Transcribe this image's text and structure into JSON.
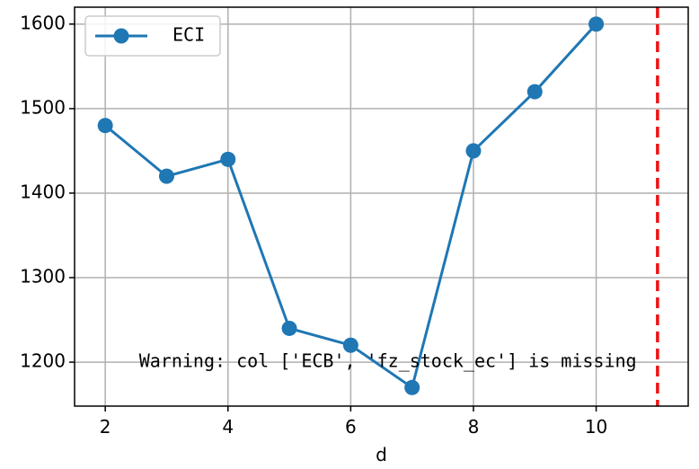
{
  "chart_data": {
    "type": "line",
    "title": "",
    "xlabel": "d",
    "ylabel": "",
    "xlim": [
      1.5,
      11.5
    ],
    "ylim": [
      1148,
      1620
    ],
    "x_ticks": [
      2,
      4,
      6,
      8,
      10
    ],
    "y_ticks": [
      1200,
      1300,
      1400,
      1500,
      1600
    ],
    "grid": true,
    "legend": {
      "placement": "top-left"
    },
    "series": [
      {
        "name": "ECI",
        "color": "#1f77b4",
        "marker": "circle",
        "x": [
          2,
          3,
          4,
          5,
          6,
          7,
          8,
          9,
          10
        ],
        "values": [
          1480,
          1420,
          1440,
          1240,
          1220,
          1170,
          1450,
          1520,
          1600
        ]
      }
    ],
    "reference_line": {
      "x": 11,
      "style": "dashed",
      "color": "#ee1111"
    },
    "annotation": {
      "text": "Warning: col ['ECB', 'fz_stock_ec'] is missing",
      "x": 2.55,
      "y": 1200
    }
  }
}
